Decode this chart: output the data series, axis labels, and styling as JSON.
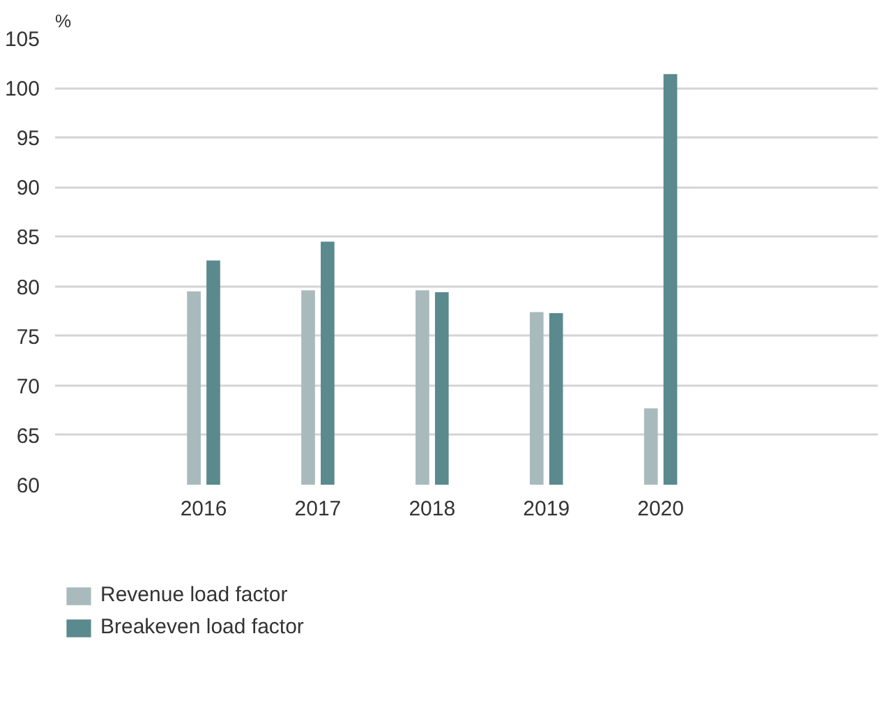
{
  "chart_data": {
    "type": "bar",
    "ylabel": "%",
    "categories": [
      "2016",
      "2017",
      "2018",
      "2019",
      "2020"
    ],
    "series": [
      {
        "name": "Revenue load factor",
        "color": "#a9babd",
        "values": [
          79.5,
          79.6,
          79.6,
          77.4,
          67.7
        ]
      },
      {
        "name": "Breakeven load factor",
        "color": "#5a8a8d",
        "values": [
          82.6,
          84.5,
          79.4,
          77.3,
          101.4
        ]
      }
    ],
    "ylim": [
      60,
      105
    ],
    "yticks": [
      60,
      65,
      70,
      75,
      80,
      85,
      90,
      95,
      100,
      105
    ],
    "grid": "y",
    "legend": "bottom left"
  }
}
